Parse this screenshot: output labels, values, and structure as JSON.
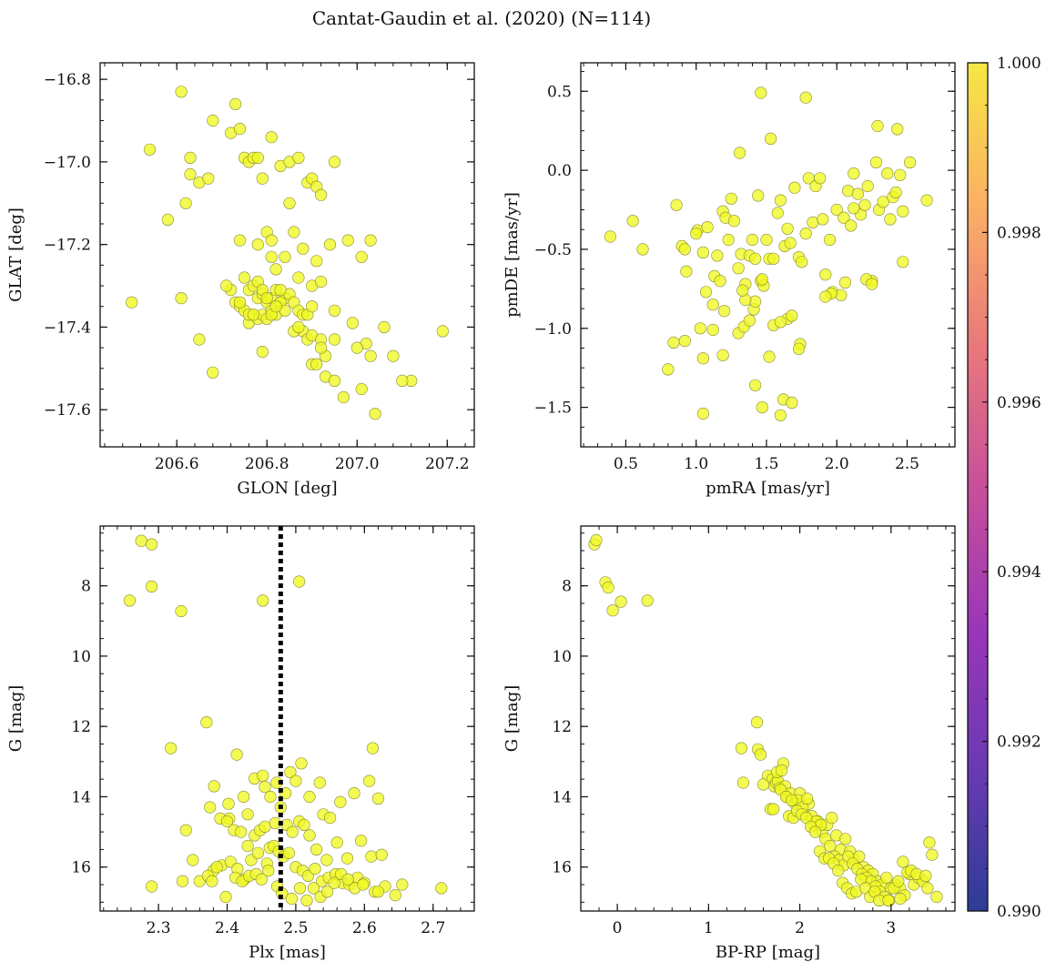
{
  "figure": {
    "title": "Cantat-Gaudin et al. (2020) (N=114)"
  },
  "colorbar": {
    "min": 0.99,
    "max": 1.0,
    "tick_labels": [
      "0.990",
      "0.992",
      "0.994",
      "0.996",
      "0.998",
      "1.000"
    ],
    "colormap": "plasma",
    "colors": [
      "#2d3c95",
      "#6a3ab3",
      "#9a36b8",
      "#c84f9a",
      "#e9797b",
      "#fbb064",
      "#f5e843"
    ]
  },
  "chart_data": [
    {
      "type": "scatter",
      "panel": "GLON-GLAT",
      "xlabel": "GLON [deg]",
      "ylabel": "GLAT [deg]",
      "xlim": [
        206.43,
        207.26
      ],
      "ylim": [
        -17.69,
        -16.76
      ],
      "y_inverted": false,
      "xticks": [
        206.6,
        206.8,
        207.0,
        207.2
      ],
      "xtick_labels": [
        "206.6",
        "206.8",
        "207.0",
        "207.2"
      ],
      "yticks": [
        -16.8,
        -17.0,
        -17.2,
        -17.4,
        -17.6
      ],
      "ytick_labels": [
        "−16.8",
        "−17.0",
        "−17.2",
        "−17.4",
        "−17.6"
      ],
      "x": [
        206.61,
        206.73,
        206.54,
        206.63,
        206.68,
        206.72,
        206.74,
        206.75,
        206.76,
        206.77,
        206.78,
        206.79,
        206.81,
        206.83,
        206.85,
        206.87,
        206.89,
        206.9,
        206.91,
        206.92,
        206.95,
        206.63,
        206.65,
        206.62,
        206.58,
        206.67,
        206.74,
        206.78,
        206.8,
        206.81,
        206.81,
        206.82,
        206.84,
        206.85,
        206.86,
        206.87,
        206.88,
        206.9,
        206.91,
        206.92,
        206.94,
        206.98,
        207.01,
        207.03,
        206.75,
        206.76,
        206.77,
        206.78,
        206.79,
        206.8,
        206.81,
        206.82,
        206.83,
        206.84,
        206.85,
        206.86,
        206.87,
        206.88,
        206.89,
        206.9,
        206.72,
        206.71,
        206.73,
        206.74,
        206.75,
        206.76,
        206.77,
        206.78,
        206.79,
        206.8,
        206.81,
        206.82,
        206.83,
        206.84,
        206.88,
        206.89,
        206.9,
        206.92,
        206.93,
        206.95,
        206.99,
        207.02,
        207.08,
        206.74,
        206.79,
        206.81,
        206.86,
        206.9,
        206.92,
        206.95,
        207.0,
        207.03,
        207.06,
        207.12,
        206.5,
        206.61,
        206.65,
        206.68,
        206.76,
        206.77,
        206.78,
        206.79,
        206.8,
        206.82,
        206.83,
        206.87,
        206.91,
        206.93,
        206.95,
        206.97,
        207.01,
        207.04,
        207.1,
        207.19
      ],
      "y": [
        -16.83,
        -16.86,
        -16.97,
        -16.99,
        -16.9,
        -16.93,
        -16.92,
        -16.99,
        -17.0,
        -16.99,
        -16.99,
        -17.04,
        -16.94,
        -17.01,
        -17.0,
        -16.99,
        -17.05,
        -17.04,
        -17.06,
        -17.08,
        -17.0,
        -17.03,
        -17.05,
        -17.1,
        -17.14,
        -17.04,
        -17.19,
        -17.2,
        -17.17,
        -17.19,
        -17.23,
        -17.26,
        -17.23,
        -17.1,
        -17.17,
        -17.28,
        -17.21,
        -17.3,
        -17.24,
        -17.29,
        -17.2,
        -17.19,
        -17.23,
        -17.19,
        -17.28,
        -17.31,
        -17.3,
        -17.33,
        -17.32,
        -17.34,
        -17.33,
        -17.31,
        -17.34,
        -17.33,
        -17.32,
        -17.34,
        -17.36,
        -17.37,
        -17.37,
        -17.35,
        -17.31,
        -17.3,
        -17.34,
        -17.35,
        -17.36,
        -17.39,
        -17.37,
        -17.38,
        -17.37,
        -17.38,
        -17.36,
        -17.37,
        -17.34,
        -17.36,
        -17.41,
        -17.43,
        -17.42,
        -17.43,
        -17.47,
        -17.43,
        -17.39,
        -17.44,
        -17.47,
        -17.34,
        -17.46,
        -17.37,
        -17.41,
        -17.49,
        -17.45,
        -17.36,
        -17.45,
        -17.47,
        -17.4,
        -17.53,
        -17.34,
        -17.33,
        -17.43,
        -17.51,
        -17.37,
        -17.37,
        -17.29,
        -17.31,
        -17.33,
        -17.35,
        -17.31,
        -17.4,
        -17.49,
        -17.52,
        -17.53,
        -17.57,
        -17.55,
        -17.61,
        -17.53,
        -17.41
      ]
    },
    {
      "type": "scatter",
      "panel": "pmRA-pmDE",
      "xlabel": "pmRA [mas/yr]",
      "ylabel": "pmDE [mas/yr]",
      "xlim": [
        0.18,
        2.84
      ],
      "ylim": [
        -1.75,
        0.68
      ],
      "y_inverted": false,
      "xticks": [
        0.5,
        1.0,
        1.5,
        2.0,
        2.5
      ],
      "xtick_labels": [
        "0.5",
        "1.0",
        "1.5",
        "2.0",
        "2.5"
      ],
      "yticks": [
        0.5,
        0.0,
        -0.5,
        -1.0,
        -1.5
      ],
      "ytick_labels": [
        "0.5",
        "0.0",
        "−0.5",
        "−1.0",
        "−1.5"
      ],
      "x": [
        0.39,
        0.55,
        0.62,
        0.86,
        0.9,
        0.92,
        0.93,
        1.01,
        1.05,
        1.07,
        1.08,
        1.13,
        1.15,
        1.17,
        1.19,
        1.21,
        1.23,
        1.25,
        1.27,
        1.3,
        1.32,
        1.35,
        1.38,
        1.4,
        1.42,
        1.44,
        1.46,
        1.48,
        1.5,
        1.52,
        1.55,
        1.58,
        1.6,
        1.63,
        1.65,
        1.67,
        1.7,
        1.73,
        1.75,
        1.78,
        1.8,
        1.83,
        1.85,
        1.88,
        1.9,
        1.92,
        1.95,
        1.97,
        2.0,
        2.03,
        2.05,
        2.08,
        2.1,
        2.12,
        2.15,
        2.17,
        2.2,
        2.22,
        2.25,
        2.28,
        2.3,
        2.33,
        2.36,
        2.38,
        2.4,
        2.42,
        2.45,
        2.47,
        2.52,
        2.64,
        1.46,
        1.53,
        1.78,
        1.31,
        2.29,
        2.43,
        1.12,
        1.19,
        1.3,
        1.41,
        1.55,
        1.65,
        1.74,
        1.96,
        2.06,
        2.21,
        0.8,
        0.84,
        0.92,
        1.03,
        1.05,
        1.12,
        1.2,
        1.34,
        1.38,
        1.42,
        1.47,
        1.6,
        1.68,
        1.73,
        1.92,
        1.05,
        1.42,
        1.62,
        1.68,
        1.35,
        1.33,
        1.52,
        1.47,
        1.6,
        2.47,
        1.0,
        2.12,
        2.25
      ],
      "y": [
        -0.42,
        -0.32,
        -0.5,
        -0.22,
        -0.48,
        -0.5,
        -0.64,
        -0.38,
        -0.52,
        -0.77,
        -0.36,
        -0.67,
        -0.54,
        -0.7,
        -0.26,
        -0.3,
        -0.44,
        -0.18,
        -0.32,
        -0.62,
        -0.53,
        -0.72,
        -0.54,
        -0.44,
        -0.56,
        -0.16,
        -0.7,
        -0.73,
        -0.44,
        -0.56,
        -0.56,
        -0.27,
        -0.19,
        -0.48,
        -0.37,
        -0.46,
        -0.11,
        -0.55,
        -0.58,
        -0.4,
        -0.05,
        -0.33,
        -0.1,
        -0.05,
        -0.31,
        -0.66,
        -0.44,
        -0.77,
        -0.25,
        -0.79,
        -0.3,
        -0.13,
        -0.35,
        -0.02,
        -0.15,
        -0.28,
        -0.22,
        -0.1,
        -0.7,
        0.05,
        -0.25,
        -0.2,
        -0.02,
        -0.31,
        -0.17,
        -0.14,
        -0.03,
        -0.26,
        0.05,
        -0.19,
        0.49,
        0.2,
        0.46,
        0.11,
        0.28,
        0.26,
        -1.01,
        -1.17,
        -1.03,
        -0.88,
        -0.98,
        -0.94,
        -1.1,
        -0.78,
        -0.71,
        -0.69,
        -1.26,
        -1.09,
        -1.08,
        -1.0,
        -1.19,
        -0.85,
        -0.89,
        -0.99,
        -0.95,
        -0.83,
        -0.69,
        -0.96,
        -0.92,
        -1.13,
        -0.8,
        -1.54,
        -1.36,
        -1.45,
        -1.47,
        -0.82,
        -0.76,
        -1.18,
        -1.5,
        -1.55,
        -0.58,
        -0.4,
        -0.24,
        -0.72
      ]
    },
    {
      "type": "scatter",
      "panel": "Plx-G",
      "xlabel": "Plx [mas]",
      "ylabel": "G [mag]",
      "xlim": [
        2.215,
        2.76
      ],
      "ylim": [
        17.25,
        6.3
      ],
      "y_inverted": true,
      "xticks": [
        2.3,
        2.4,
        2.5,
        2.6,
        2.7
      ],
      "xtick_labels": [
        "2.3",
        "2.4",
        "2.5",
        "2.6",
        "2.7"
      ],
      "yticks": [
        8,
        10,
        12,
        14,
        16
      ],
      "ytick_labels": [
        "8",
        "10",
        "12",
        "14",
        "16"
      ],
      "vline": {
        "x": 2.478,
        "style": "dotted",
        "color": "#000000"
      },
      "x": [
        2.275,
        2.29,
        2.258,
        2.29,
        2.333,
        2.452,
        2.505,
        2.318,
        2.37,
        2.414,
        2.424,
        2.402,
        2.381,
        2.403,
        2.43,
        2.44,
        2.452,
        2.455,
        2.463,
        2.472,
        2.485,
        2.492,
        2.5,
        2.508,
        2.52,
        2.535,
        2.54,
        2.55,
        2.565,
        2.585,
        2.607,
        2.612,
        2.62,
        2.34,
        2.375,
        2.39,
        2.4,
        2.41,
        2.42,
        2.43,
        2.44,
        2.448,
        2.455,
        2.462,
        2.47,
        2.478,
        2.487,
        2.495,
        2.505,
        2.512,
        2.52,
        2.53,
        2.545,
        2.56,
        2.575,
        2.595,
        2.61,
        2.625,
        2.35,
        2.38,
        2.392,
        2.405,
        2.415,
        2.425,
        2.435,
        2.445,
        2.458,
        2.468,
        2.475,
        2.482,
        2.49,
        2.5,
        2.51,
        2.518,
        2.528,
        2.538,
        2.548,
        2.558,
        2.568,
        2.578,
        2.59,
        2.6,
        2.615,
        2.63,
        2.645,
        2.29,
        2.335,
        2.36,
        2.372,
        2.378,
        2.385,
        2.398,
        2.412,
        2.422,
        2.432,
        2.442,
        2.45,
        2.46,
        2.473,
        2.48,
        2.494,
        2.506,
        2.516,
        2.526,
        2.536,
        2.546,
        2.556,
        2.566,
        2.576,
        2.586,
        2.598,
        2.62,
        2.655,
        2.712
      ],
      "y": [
        6.72,
        6.82,
        8.42,
        8.02,
        8.72,
        8.42,
        7.88,
        12.62,
        11.88,
        12.8,
        14.0,
        14.2,
        13.7,
        14.62,
        14.5,
        13.48,
        13.4,
        13.72,
        14.0,
        13.6,
        13.9,
        13.3,
        13.55,
        13.05,
        14.0,
        13.6,
        14.5,
        14.6,
        14.15,
        13.9,
        13.55,
        12.62,
        14.05,
        14.95,
        14.3,
        14.62,
        14.7,
        14.95,
        15.0,
        15.4,
        15.1,
        14.95,
        14.85,
        15.45,
        14.75,
        14.3,
        14.8,
        15.0,
        14.7,
        14.8,
        15.1,
        15.5,
        15.8,
        15.3,
        15.75,
        15.25,
        15.7,
        15.65,
        15.8,
        16.1,
        15.95,
        15.85,
        16.05,
        16.35,
        15.8,
        15.6,
        15.9,
        15.4,
        15.55,
        15.7,
        15.6,
        16.0,
        16.1,
        16.25,
        16.05,
        16.4,
        16.3,
        16.2,
        16.45,
        16.5,
        16.3,
        16.45,
        16.7,
        16.55,
        16.8,
        16.55,
        16.4,
        16.4,
        16.25,
        16.4,
        16.0,
        16.85,
        16.3,
        16.4,
        16.25,
        16.2,
        16.35,
        16.1,
        16.55,
        16.75,
        16.9,
        16.6,
        16.95,
        16.6,
        16.85,
        16.7,
        16.45,
        16.2,
        16.35,
        16.6,
        16.5,
        16.7,
        16.5,
        16.6
      ]
    },
    {
      "type": "scatter",
      "panel": "BPRP-G",
      "xlabel": "BP-RP [mag]",
      "ylabel": "G [mag]",
      "xlim": [
        -0.4,
        3.7
      ],
      "ylim": [
        17.25,
        6.3
      ],
      "y_inverted": true,
      "xticks": [
        0,
        1,
        2,
        3
      ],
      "xtick_labels": [
        "0",
        "1",
        "2",
        "3"
      ],
      "yticks": [
        8,
        10,
        12,
        14,
        16
      ],
      "ytick_labels": [
        "8",
        "10",
        "12",
        "14",
        "16"
      ],
      "x": [
        -0.25,
        -0.23,
        -0.13,
        -0.1,
        -0.05,
        0.04,
        0.33,
        1.36,
        1.53,
        1.54,
        1.57,
        1.38,
        1.65,
        1.7,
        1.72,
        1.74,
        1.76,
        1.78,
        1.82,
        1.84,
        1.86,
        1.9,
        1.95,
        2.0,
        2.05,
        2.1,
        2.15,
        2.2,
        2.25,
        2.3,
        2.35,
        2.4,
        2.45,
        2.5,
        2.55,
        2.6,
        2.65,
        2.7,
        2.75,
        2.8,
        2.85,
        2.9,
        2.95,
        3.0,
        3.05,
        3.1,
        3.15,
        3.2,
        3.25,
        3.3,
        3.35,
        3.4,
        3.45,
        3.5,
        1.6,
        1.68,
        1.75,
        1.8,
        1.88,
        1.93,
        1.98,
        2.03,
        2.08,
        2.13,
        2.18,
        2.23,
        2.28,
        2.33,
        2.38,
        2.43,
        2.48,
        2.53,
        2.58,
        2.63,
        2.68,
        2.73,
        2.78,
        2.83,
        2.88,
        2.93,
        2.98,
        3.03,
        3.08,
        3.13,
        3.18,
        3.22,
        3.28,
        3.38,
        3.42,
        1.71,
        1.79,
        1.85,
        1.91,
        1.97,
        2.02,
        2.07,
        2.12,
        2.17,
        2.22,
        2.27,
        2.32,
        2.37,
        2.42,
        2.47,
        2.52,
        2.57,
        2.62,
        2.67,
        2.72,
        2.77,
        2.82,
        2.87,
        2.97,
        3.1
      ],
      "y": [
        6.82,
        6.7,
        7.9,
        8.05,
        8.7,
        8.45,
        8.42,
        12.62,
        11.88,
        12.65,
        12.8,
        13.6,
        13.4,
        13.5,
        13.7,
        13.6,
        13.55,
        13.75,
        13.05,
        13.7,
        14.0,
        13.9,
        14.2,
        13.9,
        14.5,
        14.2,
        14.8,
        14.7,
        15.0,
        14.8,
        14.6,
        15.1,
        15.5,
        15.2,
        15.55,
        15.8,
        15.7,
        16.0,
        16.1,
        16.2,
        16.4,
        16.5,
        16.3,
        16.6,
        16.5,
        16.6,
        16.8,
        16.2,
        16.5,
        16.3,
        16.4,
        16.6,
        15.65,
        16.85,
        13.65,
        14.35,
        13.3,
        13.25,
        14.55,
        14.6,
        14.1,
        14.3,
        14.05,
        14.55,
        14.7,
        14.8,
        15.2,
        15.4,
        15.7,
        15.8,
        15.95,
        15.7,
        15.9,
        16.05,
        16.2,
        16.3,
        16.4,
        16.55,
        16.7,
        16.85,
        16.95,
        16.6,
        16.4,
        15.85,
        16.15,
        16.1,
        16.2,
        16.25,
        15.3,
        14.35,
        13.8,
        14.0,
        14.1,
        14.4,
        14.5,
        14.6,
        14.85,
        15.0,
        15.55,
        15.75,
        15.75,
        15.9,
        16.1,
        16.45,
        16.6,
        16.75,
        16.7,
        16.35,
        16.6,
        16.85,
        16.7,
        16.95,
        16.95,
        16.9
      ]
    }
  ]
}
